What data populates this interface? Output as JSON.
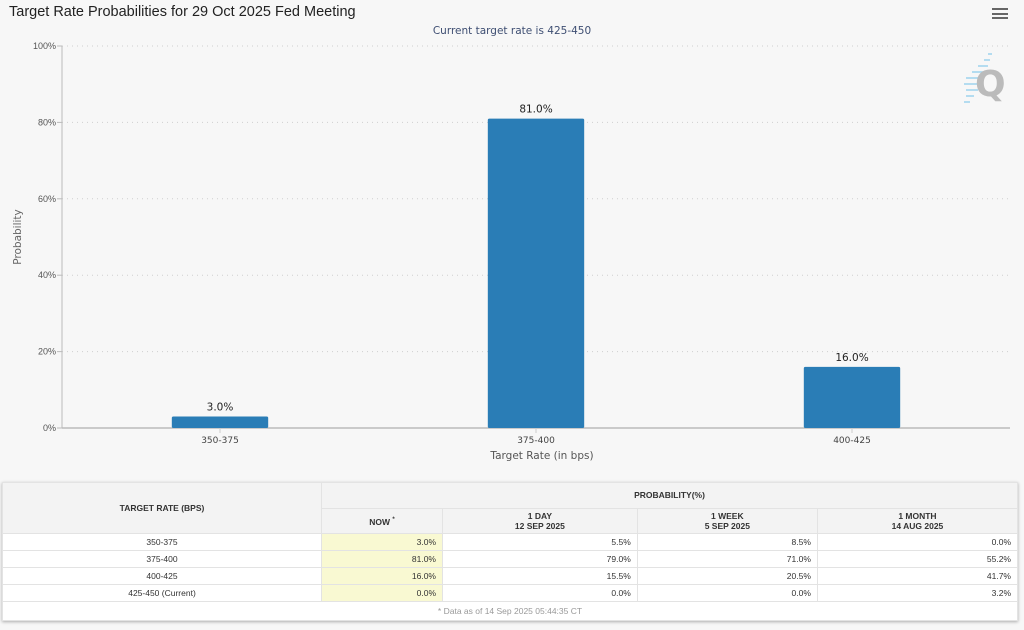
{
  "header": {
    "title": "Target Rate Probabilities for 29 Oct 2025 Fed Meeting",
    "subtitle": "Current target rate is 425-450",
    "menu_icon": "hamburger-menu-icon",
    "logo_icon": "q-logo-icon"
  },
  "colors": {
    "bar": "#2a7db6",
    "now_column_bg": "#f9f9d2",
    "subtitle": "#3e4e72"
  },
  "chart_data": {
    "type": "bar",
    "title": "Target Rate Probabilities for 29 Oct 2025 Fed Meeting",
    "subtitle": "Current target rate is 425-450",
    "categories": [
      "350-375",
      "375-400",
      "400-425"
    ],
    "values": [
      3.0,
      81.0,
      16.0
    ],
    "data_labels": [
      "3.0%",
      "81.0%",
      "16.0%"
    ],
    "xlabel": "Target Rate (in bps)",
    "ylabel": "Probability",
    "ylim": [
      0,
      100
    ],
    "yticks": [
      0,
      20,
      40,
      60,
      80,
      100
    ],
    "ytick_labels": [
      "0%",
      "20%",
      "40%",
      "60%",
      "80%",
      "100%"
    ],
    "grid": true
  },
  "table": {
    "rate_header": "TARGET RATE (BPS)",
    "prob_header": "PROBABILITY(%)",
    "columns": [
      {
        "label": "NOW",
        "sup": "*",
        "date": ""
      },
      {
        "label": "1 DAY",
        "date": "12 SEP 2025"
      },
      {
        "label": "1 WEEK",
        "date": "5 SEP 2025"
      },
      {
        "label": "1 MONTH",
        "date": "14 AUG 2025"
      }
    ],
    "rows": [
      {
        "rate": "350-375",
        "values": [
          "3.0%",
          "5.5%",
          "8.5%",
          "0.0%"
        ]
      },
      {
        "rate": "375-400",
        "values": [
          "81.0%",
          "79.0%",
          "71.0%",
          "55.2%"
        ]
      },
      {
        "rate": "400-425",
        "values": [
          "16.0%",
          "15.5%",
          "20.5%",
          "41.7%"
        ]
      },
      {
        "rate": "425-450 (Current)",
        "values": [
          "0.0%",
          "0.0%",
          "0.0%",
          "3.2%"
        ]
      }
    ],
    "footnote": "* Data as of 14 Sep 2025 05:44:35 CT"
  }
}
